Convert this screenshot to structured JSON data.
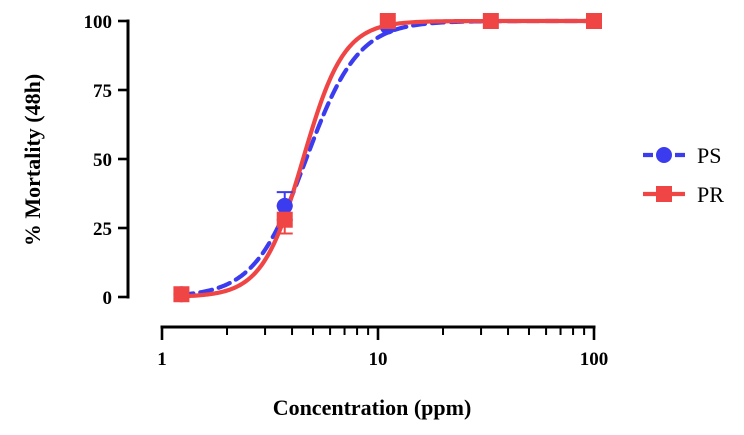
{
  "chart_data": {
    "type": "scatter",
    "title": "",
    "xlabel": "Concentration (ppm)",
    "ylabel": "% Mortality (48h)",
    "xscale": "log",
    "xlim": [
      1,
      100
    ],
    "ylim": [
      0,
      100
    ],
    "x_ticks": [
      {
        "value": 1,
        "label": "1"
      },
      {
        "value": 10,
        "label": "10"
      },
      {
        "value": 100,
        "label": "100"
      }
    ],
    "y_ticks": [
      {
        "value": 0,
        "label": "0"
      },
      {
        "value": 25,
        "label": "25"
      },
      {
        "value": 50,
        "label": "50"
      },
      {
        "value": 75,
        "label": "75"
      },
      {
        "value": 100,
        "label": "100"
      }
    ],
    "grid": false,
    "legend_position": "right",
    "series": [
      {
        "name": "PS",
        "marker": "circle",
        "line_style": "dashed",
        "color": "#3b3bf0",
        "x": [
          1.23,
          3.7,
          11.1,
          33.3,
          100
        ],
        "y": [
          1,
          33,
          98,
          100,
          100
        ],
        "error": [
          0,
          5,
          0,
          0,
          0
        ],
        "fit": {
          "ec50": 4.65,
          "hill": 3.6,
          "bottom": 0,
          "top": 100
        }
      },
      {
        "name": "PR",
        "marker": "square",
        "line_style": "solid",
        "color": "#f04545",
        "x": [
          1.23,
          3.7,
          11.1,
          33.3,
          100
        ],
        "y": [
          1,
          28,
          100,
          100,
          100
        ],
        "error": [
          0,
          5,
          0,
          0,
          0
        ],
        "fit": {
          "ec50": 4.5,
          "hill": 4.6,
          "bottom": 0,
          "top": 100
        }
      }
    ]
  }
}
